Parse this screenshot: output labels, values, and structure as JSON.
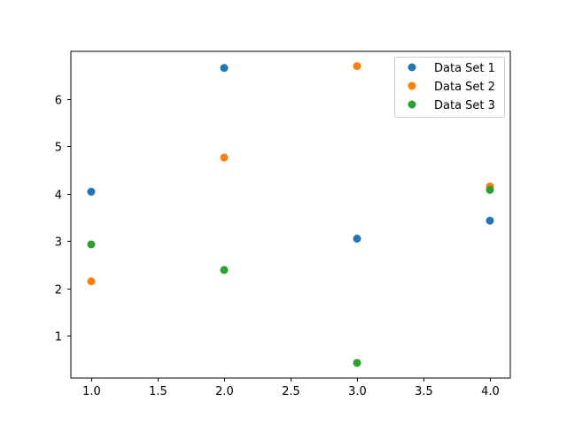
{
  "chart_data": {
    "type": "scatter",
    "title": "",
    "xlabel": "",
    "ylabel": "",
    "xlim": [
      0.847,
      4.153
    ],
    "ylim": [
      0.11,
      7.0
    ],
    "grid": false,
    "legend_position": "upper right",
    "x_ticks": [
      1.0,
      1.5,
      2.0,
      2.5,
      3.0,
      3.5,
      4.0
    ],
    "x_tick_labels": [
      "1.0",
      "1.5",
      "2.0",
      "2.5",
      "3.0",
      "3.5",
      "4.0"
    ],
    "y_ticks": [
      1,
      2,
      3,
      4,
      5,
      6
    ],
    "y_tick_labels": [
      "1",
      "2",
      "3",
      "4",
      "5",
      "6"
    ],
    "series": [
      {
        "name": "Data Set 1",
        "color": "#1f77b4",
        "x": [
          1,
          2,
          3,
          4
        ],
        "y": [
          4.04,
          6.65,
          3.05,
          3.43
        ]
      },
      {
        "name": "Data Set 2",
        "color": "#ff7f0e",
        "x": [
          1,
          2,
          3,
          4
        ],
        "y": [
          2.15,
          4.76,
          6.69,
          4.15
        ]
      },
      {
        "name": "Data Set 3",
        "color": "#2ca02c",
        "x": [
          1,
          2,
          3,
          4
        ],
        "y": [
          2.93,
          2.39,
          0.43,
          4.08
        ]
      }
    ]
  }
}
